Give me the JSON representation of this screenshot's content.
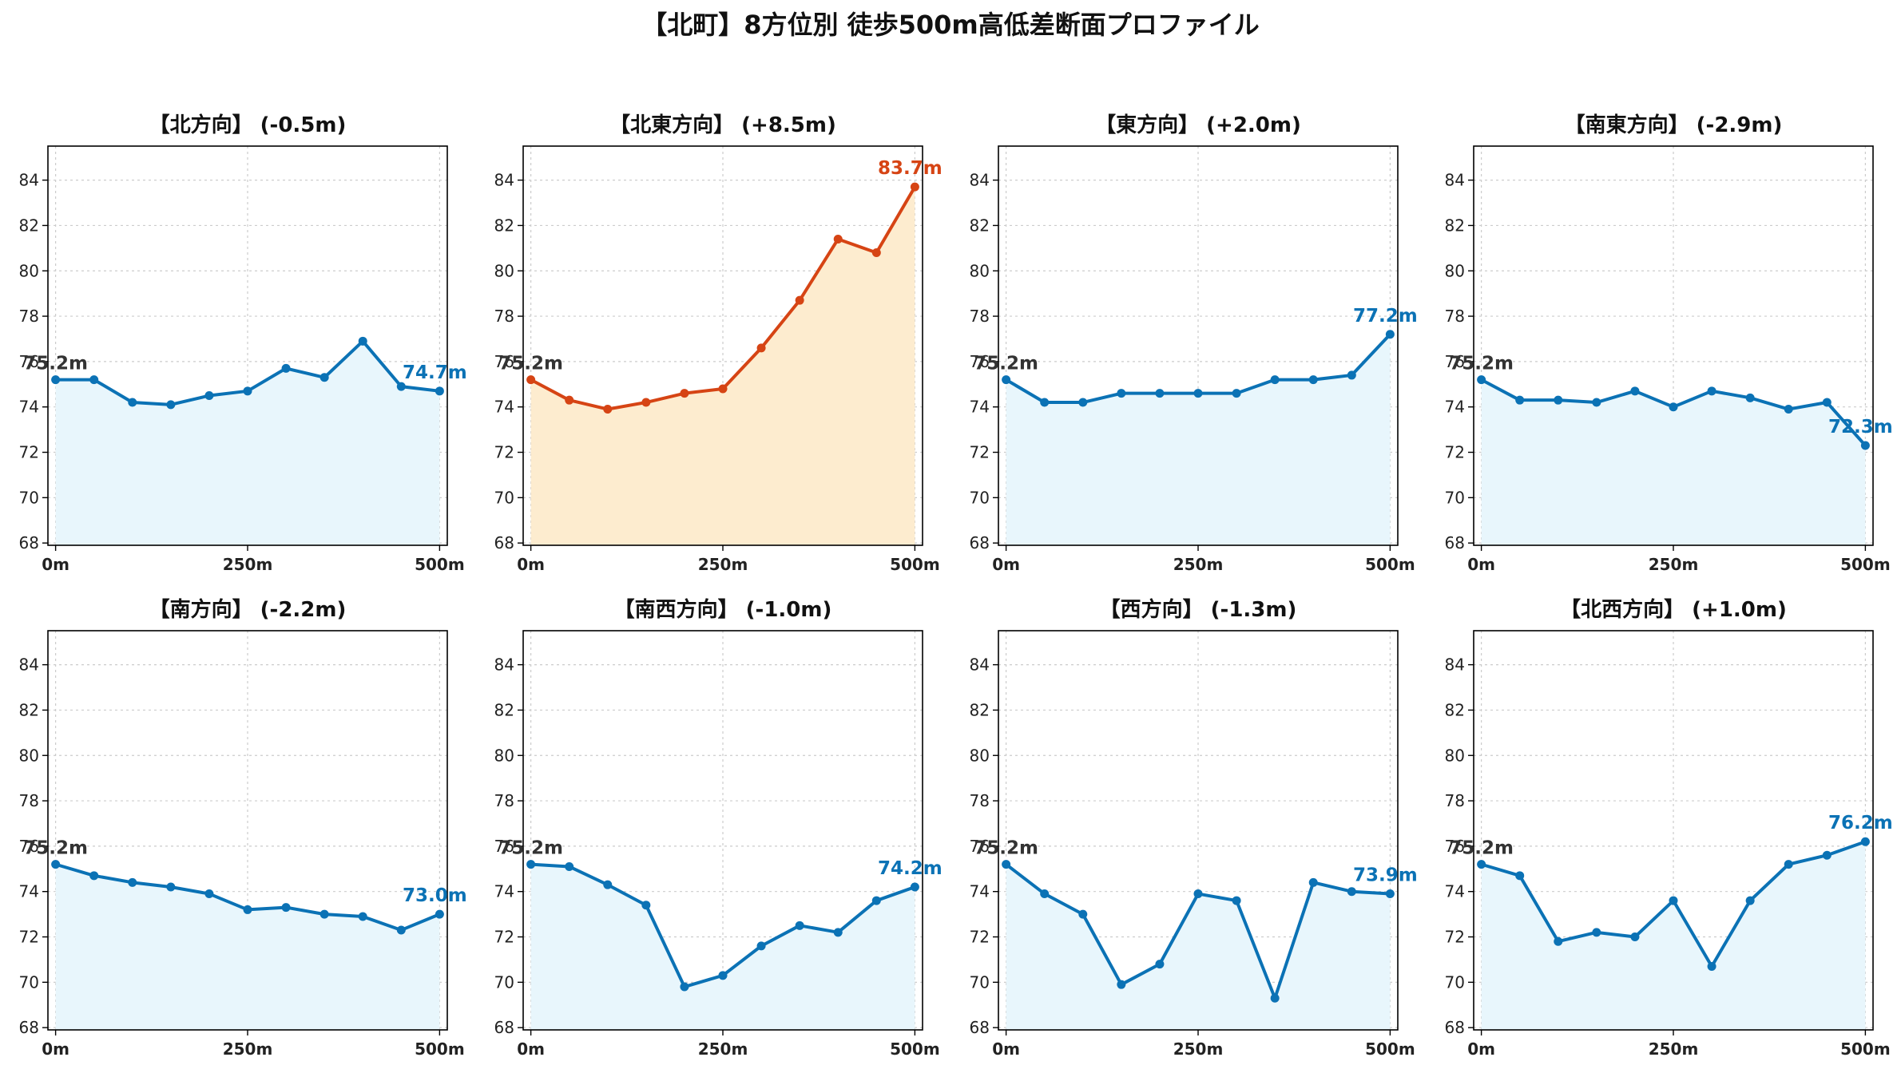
{
  "page": {
    "title": "【北町】8方位別 徒歩500m高低差断面プロファイル"
  },
  "colors": {
    "normal_line": "#0b72b5",
    "normal_fill": "#e8f6fc",
    "highlight_line": "#d64414",
    "highlight_fill": "#fdeccf",
    "start_label": "#333333",
    "grid": "#cccccc"
  },
  "chart_data": [
    {
      "type": "area",
      "title": "【北方向】 (-0.5m)",
      "highlight": false,
      "x": [
        0,
        50,
        100,
        150,
        200,
        250,
        300,
        350,
        400,
        450,
        500
      ],
      "values": [
        75.2,
        75.2,
        74.2,
        74.1,
        74.5,
        74.7,
        75.7,
        75.3,
        76.9,
        74.9,
        74.7
      ],
      "xticks": [
        0,
        250,
        500
      ],
      "xticklabels": [
        "0m",
        "250m",
        "500m"
      ],
      "yticks": [
        68,
        70,
        72,
        74,
        76,
        78,
        80,
        82,
        84
      ],
      "yticklabels": [
        "68",
        "70",
        "72",
        "74",
        "76",
        "78",
        "80",
        "82",
        "84"
      ],
      "xlim": [
        -10,
        510
      ],
      "ylim": [
        67.9,
        85.5
      ],
      "start_label": "75.2m",
      "end_label": "74.7m",
      "grid": true
    },
    {
      "type": "area",
      "title": "【北東方向】 (+8.5m)",
      "highlight": true,
      "x": [
        0,
        50,
        100,
        150,
        200,
        250,
        300,
        350,
        400,
        450,
        500
      ],
      "values": [
        75.2,
        74.3,
        73.9,
        74.2,
        74.6,
        74.8,
        76.6,
        78.7,
        81.4,
        80.8,
        83.7
      ],
      "xticks": [
        0,
        250,
        500
      ],
      "xticklabels": [
        "0m",
        "250m",
        "500m"
      ],
      "yticks": [
        68,
        70,
        72,
        74,
        76,
        78,
        80,
        82,
        84
      ],
      "yticklabels": [
        "68",
        "70",
        "72",
        "74",
        "76",
        "78",
        "80",
        "82",
        "84"
      ],
      "xlim": [
        -10,
        510
      ],
      "ylim": [
        67.9,
        85.5
      ],
      "start_label": "75.2m",
      "end_label": "83.7m",
      "grid": true
    },
    {
      "type": "area",
      "title": "【東方向】 (+2.0m)",
      "highlight": false,
      "x": [
        0,
        50,
        100,
        150,
        200,
        250,
        300,
        350,
        400,
        450,
        500
      ],
      "values": [
        75.2,
        74.2,
        74.2,
        74.6,
        74.6,
        74.6,
        74.6,
        75.2,
        75.2,
        75.4,
        77.2
      ],
      "xticks": [
        0,
        250,
        500
      ],
      "xticklabels": [
        "0m",
        "250m",
        "500m"
      ],
      "yticks": [
        68,
        70,
        72,
        74,
        76,
        78,
        80,
        82,
        84
      ],
      "yticklabels": [
        "68",
        "70",
        "72",
        "74",
        "76",
        "78",
        "80",
        "82",
        "84"
      ],
      "xlim": [
        -10,
        510
      ],
      "ylim": [
        67.9,
        85.5
      ],
      "start_label": "75.2m",
      "end_label": "77.2m",
      "grid": true
    },
    {
      "type": "area",
      "title": "【南東方向】 (-2.9m)",
      "highlight": false,
      "x": [
        0,
        50,
        100,
        150,
        200,
        250,
        300,
        350,
        400,
        450,
        500
      ],
      "values": [
        75.2,
        74.3,
        74.3,
        74.2,
        74.7,
        74.0,
        74.7,
        74.4,
        73.9,
        74.2,
        72.3
      ],
      "xticks": [
        0,
        250,
        500
      ],
      "xticklabels": [
        "0m",
        "250m",
        "500m"
      ],
      "yticks": [
        68,
        70,
        72,
        74,
        76,
        78,
        80,
        82,
        84
      ],
      "yticklabels": [
        "68",
        "70",
        "72",
        "74",
        "76",
        "78",
        "80",
        "82",
        "84"
      ],
      "xlim": [
        -10,
        510
      ],
      "ylim": [
        67.9,
        85.5
      ],
      "start_label": "75.2m",
      "end_label": "72.3m",
      "grid": true
    },
    {
      "type": "area",
      "title": "【南方向】 (-2.2m)",
      "highlight": false,
      "x": [
        0,
        50,
        100,
        150,
        200,
        250,
        300,
        350,
        400,
        450,
        500
      ],
      "values": [
        75.2,
        74.7,
        74.4,
        74.2,
        73.9,
        73.2,
        73.3,
        73.0,
        72.9,
        72.3,
        73.0
      ],
      "xticks": [
        0,
        250,
        500
      ],
      "xticklabels": [
        "0m",
        "250m",
        "500m"
      ],
      "yticks": [
        68,
        70,
        72,
        74,
        76,
        78,
        80,
        82,
        84
      ],
      "yticklabels": [
        "68",
        "70",
        "72",
        "74",
        "76",
        "78",
        "80",
        "82",
        "84"
      ],
      "xlim": [
        -10,
        510
      ],
      "ylim": [
        67.9,
        85.5
      ],
      "start_label": "75.2m",
      "end_label": "73.0m",
      "grid": true
    },
    {
      "type": "area",
      "title": "【南西方向】 (-1.0m)",
      "highlight": false,
      "x": [
        0,
        50,
        100,
        150,
        200,
        250,
        300,
        350,
        400,
        450,
        500
      ],
      "values": [
        75.2,
        75.1,
        74.3,
        73.4,
        69.8,
        70.3,
        71.6,
        72.5,
        72.2,
        73.6,
        74.2
      ],
      "xticks": [
        0,
        250,
        500
      ],
      "xticklabels": [
        "0m",
        "250m",
        "500m"
      ],
      "yticks": [
        68,
        70,
        72,
        74,
        76,
        78,
        80,
        82,
        84
      ],
      "yticklabels": [
        "68",
        "70",
        "72",
        "74",
        "76",
        "78",
        "80",
        "82",
        "84"
      ],
      "xlim": [
        -10,
        510
      ],
      "ylim": [
        67.9,
        85.5
      ],
      "start_label": "75.2m",
      "end_label": "74.2m",
      "grid": true
    },
    {
      "type": "area",
      "title": "【西方向】 (-1.3m)",
      "highlight": false,
      "x": [
        0,
        50,
        100,
        150,
        200,
        250,
        300,
        350,
        400,
        450,
        500
      ],
      "values": [
        75.2,
        73.9,
        73.0,
        69.9,
        70.8,
        73.9,
        73.6,
        69.3,
        74.4,
        74.0,
        73.9
      ],
      "xticks": [
        0,
        250,
        500
      ],
      "xticklabels": [
        "0m",
        "250m",
        "500m"
      ],
      "yticks": [
        68,
        70,
        72,
        74,
        76,
        78,
        80,
        82,
        84
      ],
      "yticklabels": [
        "68",
        "70",
        "72",
        "74",
        "76",
        "78",
        "80",
        "82",
        "84"
      ],
      "xlim": [
        -10,
        510
      ],
      "ylim": [
        67.9,
        85.5
      ],
      "start_label": "75.2m",
      "end_label": "73.9m",
      "grid": true
    },
    {
      "type": "area",
      "title": "【北西方向】 (+1.0m)",
      "highlight": false,
      "x": [
        0,
        50,
        100,
        150,
        200,
        250,
        300,
        350,
        400,
        450,
        500
      ],
      "values": [
        75.2,
        74.7,
        71.8,
        72.2,
        72.0,
        73.6,
        70.7,
        73.6,
        75.2,
        75.6,
        76.2
      ],
      "xticks": [
        0,
        250,
        500
      ],
      "xticklabels": [
        "0m",
        "250m",
        "500m"
      ],
      "yticks": [
        68,
        70,
        72,
        74,
        76,
        78,
        80,
        82,
        84
      ],
      "yticklabels": [
        "68",
        "70",
        "72",
        "74",
        "76",
        "78",
        "80",
        "82",
        "84"
      ],
      "xlim": [
        -10,
        510
      ],
      "ylim": [
        67.9,
        85.5
      ],
      "start_label": "75.2m",
      "end_label": "76.2m",
      "grid": true
    }
  ]
}
